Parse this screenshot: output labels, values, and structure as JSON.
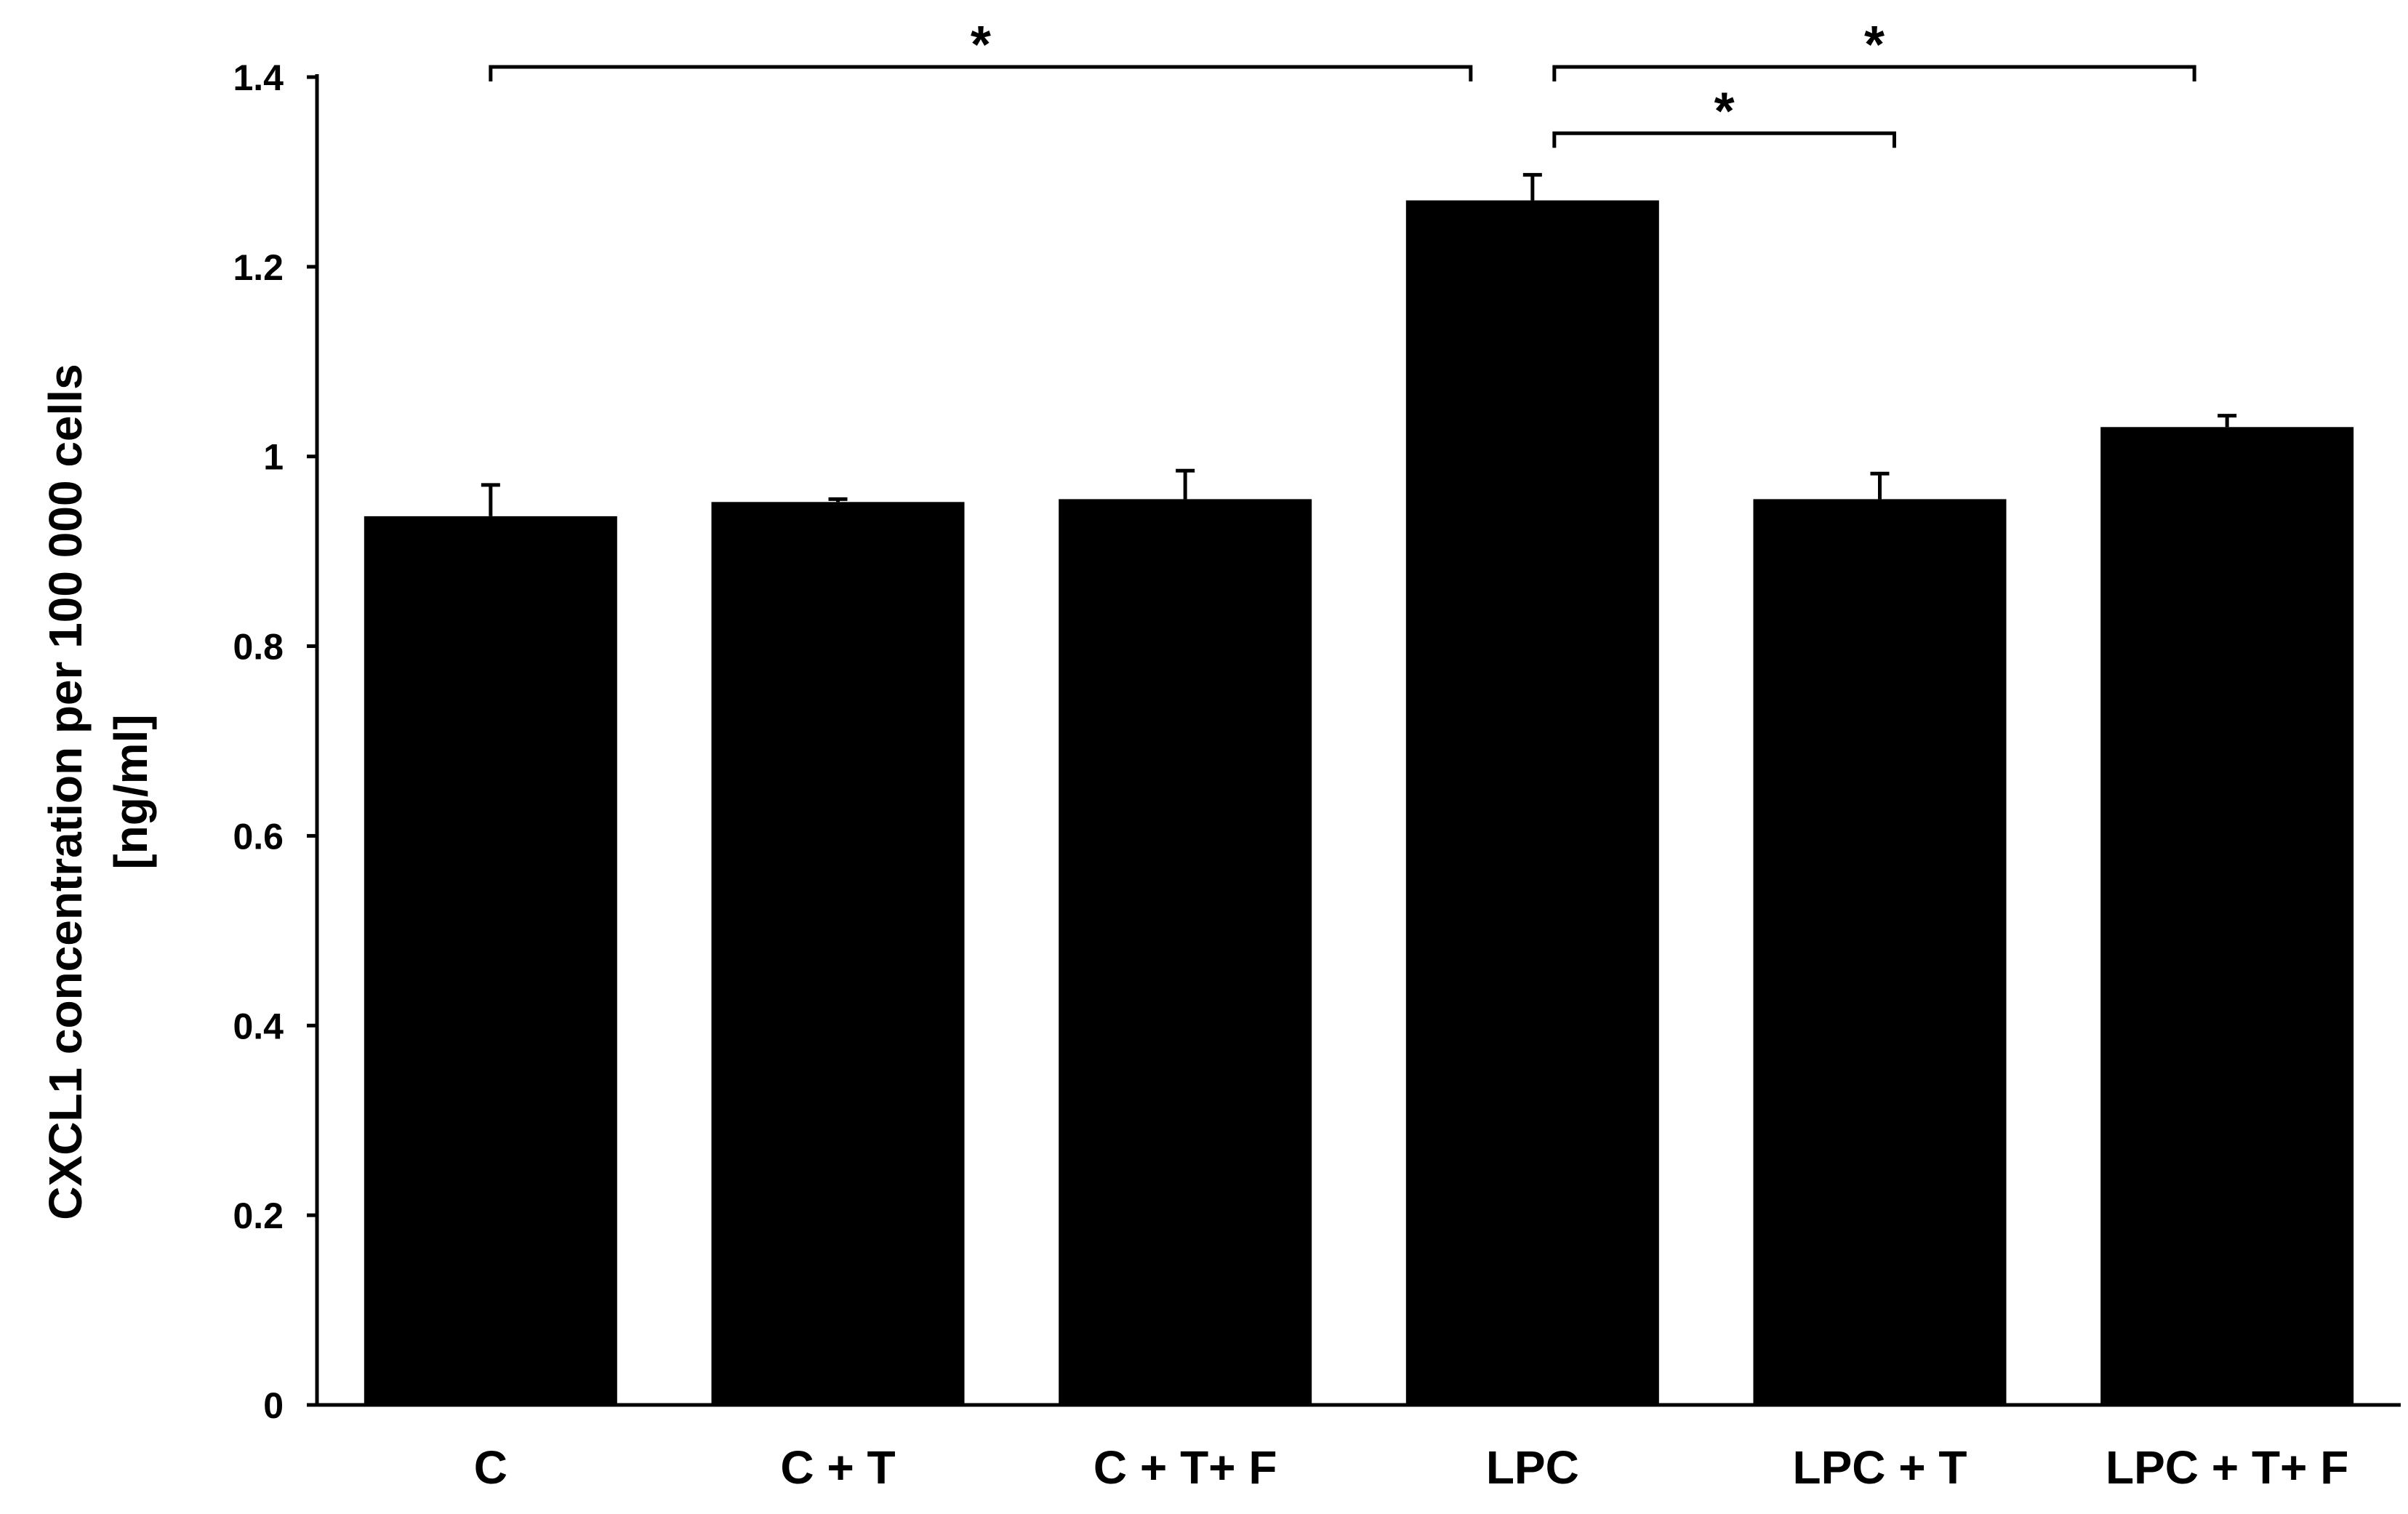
{
  "chart_data": {
    "type": "bar",
    "title": "",
    "xlabel": "",
    "ylabel_lines": [
      "CXCL1 concentration per 100 000 cells",
      "[ng/ml]"
    ],
    "categories": [
      "C",
      "C + T",
      "C + T+ F",
      "LPC",
      "LPC + T",
      "LPC + T+ F"
    ],
    "values": [
      0.937,
      0.952,
      0.955,
      1.27,
      0.955,
      1.031
    ],
    "errors": [
      0.033,
      0.003,
      0.03,
      0.027,
      0.027,
      0.012
    ],
    "ylim": [
      0,
      1.4
    ],
    "yticks": [
      0,
      0.2,
      0.4,
      0.6,
      0.8,
      1,
      1.2,
      1.4
    ],
    "ytick_labels": [
      "0",
      "0.2",
      "0.4",
      "0.6",
      "0.8",
      "1",
      "1.2",
      "1.4"
    ],
    "bar_color": "#000000",
    "grid": false,
    "significance": [
      {
        "from": 0,
        "to": 3,
        "y": 1.4,
        "label": "*"
      },
      {
        "from": 3,
        "to": 5,
        "y": 1.4,
        "label": "*"
      },
      {
        "from": 3,
        "to": 4,
        "y": 1.33,
        "label": "*"
      }
    ]
  }
}
